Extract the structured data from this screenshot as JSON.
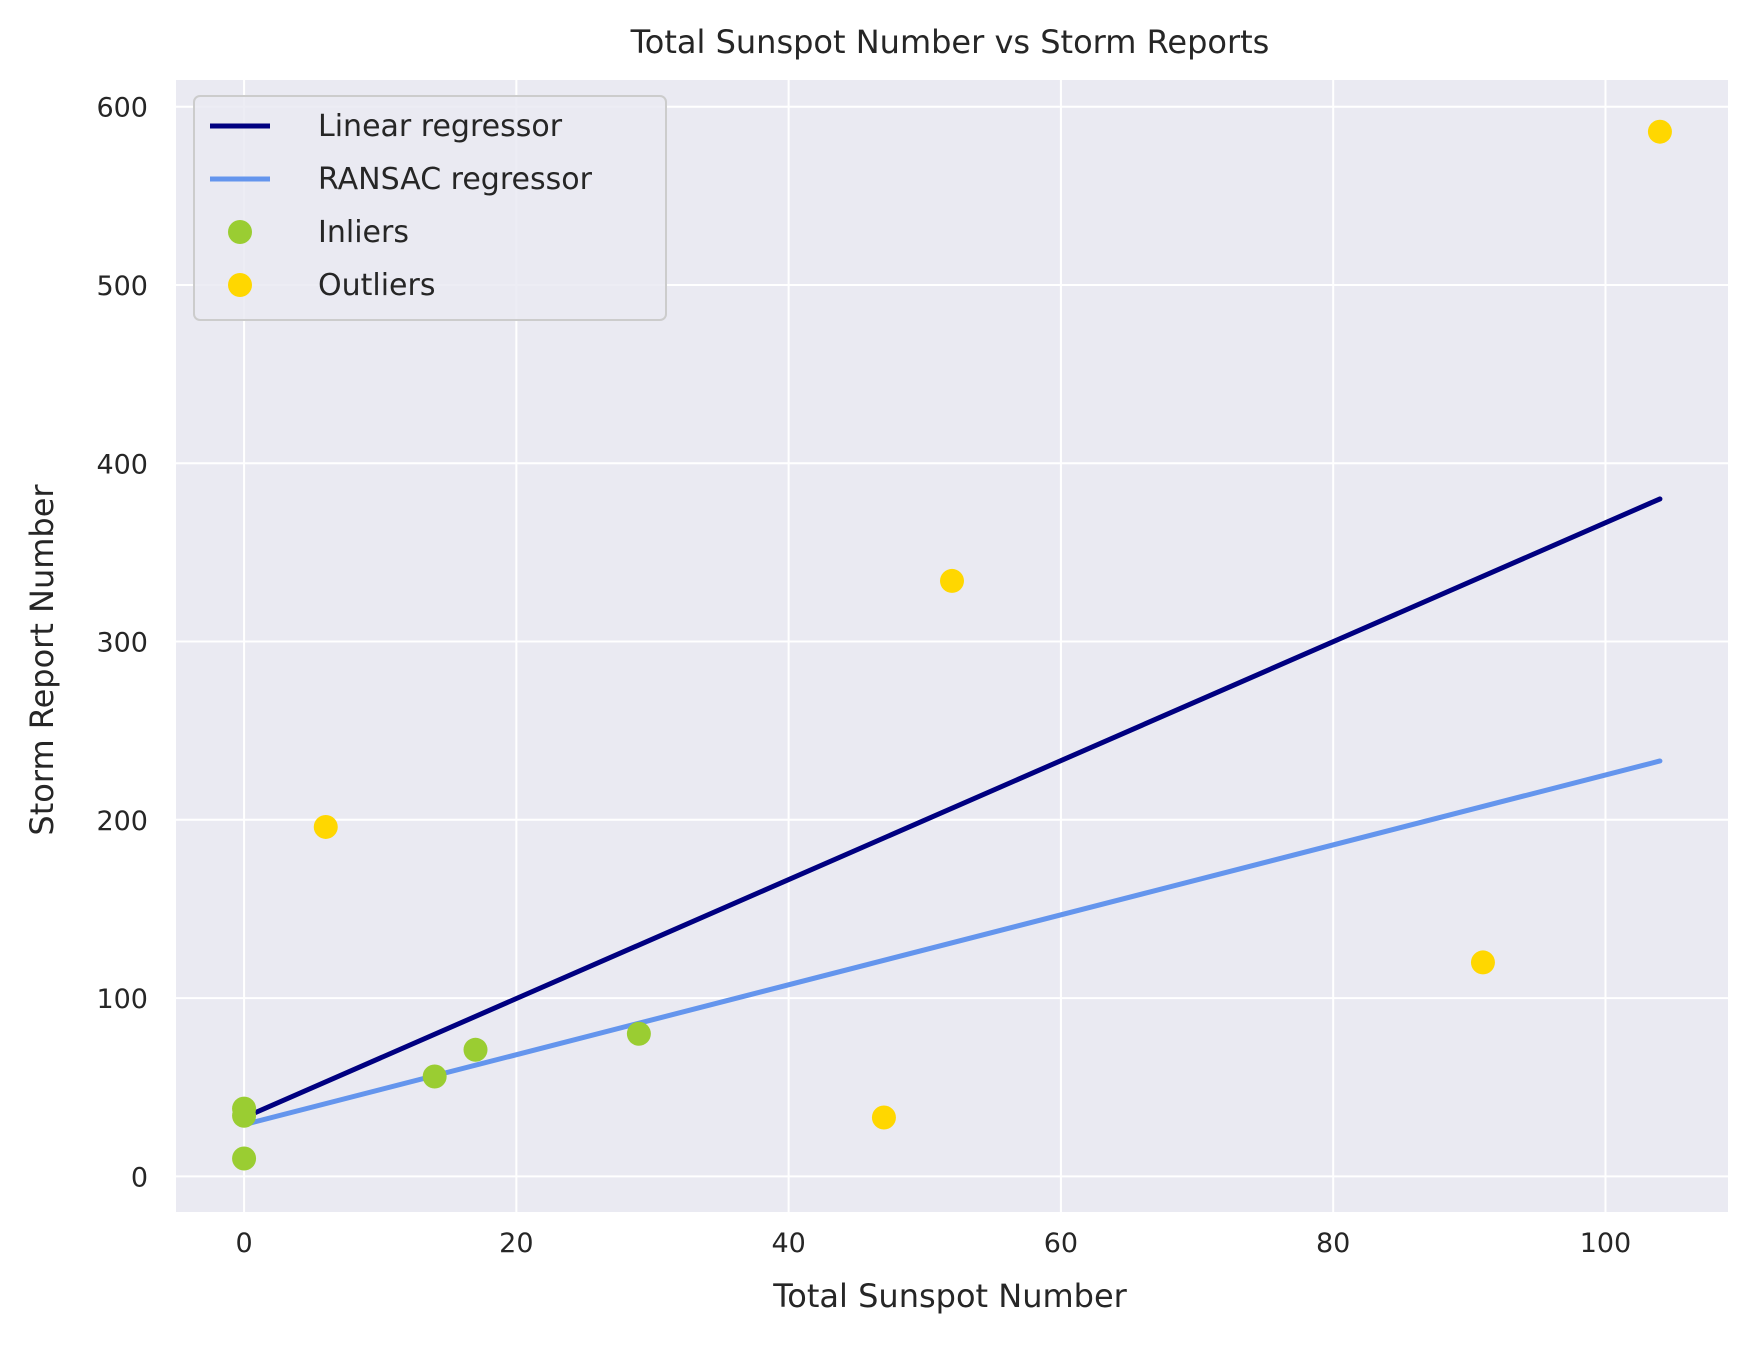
{
  "chart_data": {
    "type": "scatter",
    "title": "Total Sunspot Number vs Storm Reports",
    "xlabel": "Total Sunspot Number",
    "ylabel": "Storm Report Number",
    "xlim": [
      -5,
      109
    ],
    "ylim": [
      -20,
      615
    ],
    "xticks": [
      0,
      20,
      40,
      60,
      80,
      100
    ],
    "yticks": [
      0,
      100,
      200,
      300,
      400,
      500,
      600
    ],
    "grid": true,
    "legend_position": "upper-left",
    "series": [
      {
        "name": "Linear regressor",
        "kind": "line",
        "color": "#000080",
        "points": [
          [
            0,
            33
          ],
          [
            104,
            380
          ]
        ]
      },
      {
        "name": "RANSAC regressor",
        "kind": "line",
        "color": "#6495ed",
        "points": [
          [
            0,
            29
          ],
          [
            104,
            233
          ]
        ]
      },
      {
        "name": "Inliers",
        "kind": "scatter",
        "color": "#9acd32",
        "points": [
          [
            0,
            38
          ],
          [
            0,
            34
          ],
          [
            0,
            10
          ],
          [
            14,
            56
          ],
          [
            17,
            71
          ],
          [
            29,
            80
          ]
        ]
      },
      {
        "name": "Outliers",
        "kind": "scatter",
        "color": "#ffd700",
        "points": [
          [
            6,
            196
          ],
          [
            47,
            33
          ],
          [
            52,
            334
          ],
          [
            91,
            120
          ],
          [
            104,
            586
          ]
        ]
      }
    ]
  }
}
